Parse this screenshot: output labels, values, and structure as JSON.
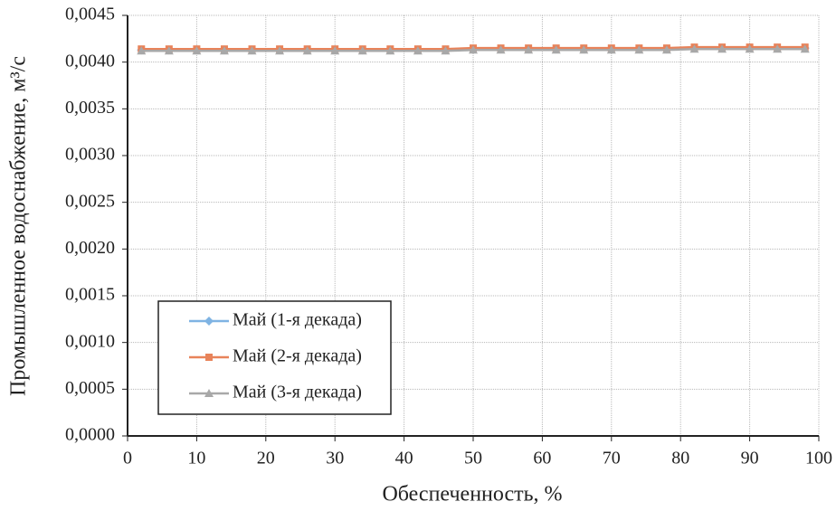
{
  "chart_data": {
    "type": "line",
    "xlabel": "Обеспеченность, %",
    "ylabel": "Промышленное водоснабжение, м³/с",
    "x": [
      2,
      6,
      10,
      14,
      18,
      22,
      26,
      30,
      34,
      38,
      42,
      46,
      50,
      54,
      58,
      62,
      66,
      70,
      74,
      78,
      82,
      86,
      90,
      94,
      98
    ],
    "series": [
      {
        "name": "Май (1-я декада)",
        "color": "#7fb3e3",
        "marker": "diamond",
        "values": [
          0.00413,
          0.00413,
          0.00413,
          0.00413,
          0.00413,
          0.00413,
          0.00413,
          0.00413,
          0.00413,
          0.00413,
          0.00413,
          0.00413,
          0.00414,
          0.00414,
          0.00414,
          0.00414,
          0.00414,
          0.00414,
          0.00414,
          0.00414,
          0.00415,
          0.00415,
          0.00415,
          0.00415,
          0.00415
        ]
      },
      {
        "name": "Май (2-я декада)",
        "color": "#e8835a",
        "marker": "square",
        "values": [
          0.00414,
          0.00414,
          0.00414,
          0.00414,
          0.00414,
          0.00414,
          0.00414,
          0.00414,
          0.00414,
          0.00414,
          0.00414,
          0.00414,
          0.00415,
          0.00415,
          0.00415,
          0.00415,
          0.00415,
          0.00415,
          0.00415,
          0.00415,
          0.00416,
          0.00416,
          0.00416,
          0.00416,
          0.00416
        ]
      },
      {
        "name": "Май (3-я декада)",
        "color": "#a8a8a8",
        "marker": "triangle",
        "values": [
          0.00412,
          0.00412,
          0.00412,
          0.00412,
          0.00412,
          0.00412,
          0.00412,
          0.00412,
          0.00412,
          0.00412,
          0.00412,
          0.00412,
          0.00413,
          0.00413,
          0.00413,
          0.00413,
          0.00413,
          0.00413,
          0.00413,
          0.00413,
          0.00414,
          0.00414,
          0.00414,
          0.00414,
          0.00414
        ]
      }
    ],
    "xlim": [
      0,
      100
    ],
    "xticks": [
      0,
      10,
      20,
      30,
      40,
      50,
      60,
      70,
      80,
      90,
      100
    ],
    "ylim": [
      0,
      0.0045
    ],
    "yticks": [
      {
        "value": 0,
        "label": "0,0000"
      },
      {
        "value": 0.0005,
        "label": "0,0005"
      },
      {
        "value": 0.001,
        "label": "0,0010"
      },
      {
        "value": 0.0015,
        "label": "0,0015"
      },
      {
        "value": 0.002,
        "label": "0,0020"
      },
      {
        "value": 0.0025,
        "label": "0,0025"
      },
      {
        "value": 0.003,
        "label": "0,0030"
      },
      {
        "value": 0.0035,
        "label": "0,0035"
      },
      {
        "value": 0.004,
        "label": "0,0040"
      },
      {
        "value": 0.0045,
        "label": "0,0045"
      }
    ],
    "grid": true,
    "legend": "lower left"
  }
}
